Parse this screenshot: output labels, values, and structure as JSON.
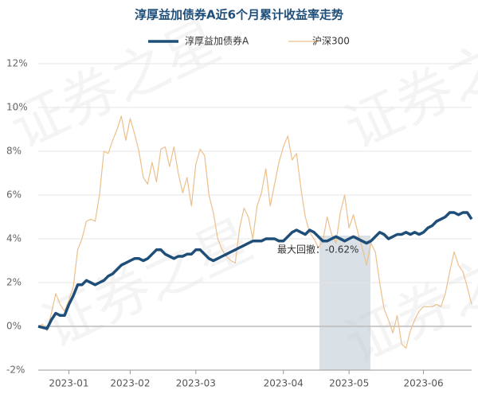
{
  "chart_data": {
    "type": "line",
    "title": "淳厚益加债券A近6个月累计收益率走势",
    "watermark": "证券之星",
    "annotation": "最大回撤：-0.62%",
    "categories": [
      null,
      null,
      null,
      null,
      null,
      null,
      null,
      "2023-01",
      null,
      null,
      null,
      null,
      null,
      null,
      null,
      null,
      null,
      null,
      null,
      null,
      null,
      "2023-02",
      null,
      null,
      null,
      null,
      null,
      null,
      null,
      null,
      null,
      null,
      null,
      null,
      null,
      null,
      "2023-03",
      null,
      null,
      null,
      null,
      null,
      null,
      null,
      null,
      null,
      null,
      null,
      null,
      null,
      null,
      null,
      null,
      null,
      null,
      null,
      "2023-04",
      null,
      null,
      null,
      null,
      null,
      null,
      null,
      null,
      null,
      null,
      null,
      null,
      null,
      null,
      "2023-05",
      null,
      null,
      null,
      null,
      null,
      null,
      null,
      null,
      null,
      null,
      null,
      null,
      null,
      null,
      null,
      null,
      "2023-06",
      null,
      null,
      null,
      null,
      null,
      null,
      null,
      null,
      null,
      null,
      null
    ],
    "series": [
      {
        "name": "淳厚益加债券A",
        "color": "#1f4e79",
        "width": 3.5,
        "values": [
          0,
          -0.05,
          -0.1,
          0.3,
          0.6,
          0.5,
          0.5,
          1.0,
          1.4,
          1.9,
          1.9,
          2.1,
          2.0,
          1.9,
          2.0,
          2.1,
          2.3,
          2.4,
          2.6,
          2.8,
          2.9,
          3.0,
          3.1,
          3.1,
          3.0,
          3.1,
          3.3,
          3.5,
          3.5,
          3.3,
          3.2,
          3.1,
          3.2,
          3.2,
          3.3,
          3.3,
          3.5,
          3.5,
          3.3,
          3.1,
          3.0,
          3.1,
          3.2,
          3.3,
          3.4,
          3.5,
          3.6,
          3.7,
          3.8,
          3.9,
          3.9,
          3.9,
          4.0,
          4.0,
          4.0,
          3.9,
          3.9,
          4.1,
          4.3,
          4.4,
          4.3,
          4.2,
          4.4,
          4.3,
          4.1,
          3.9,
          3.9,
          4.0,
          4.1,
          4.0,
          3.9,
          4.0,
          4.1,
          4.0,
          3.9,
          3.8,
          3.9,
          4.1,
          4.3,
          4.2,
          4.0,
          4.1,
          4.2,
          4.2,
          4.3,
          4.2,
          4.3,
          4.2,
          4.3,
          4.5,
          4.6,
          4.8,
          4.9,
          5.0,
          5.2,
          5.2,
          5.1,
          5.2,
          5.2,
          4.9
        ]
      },
      {
        "name": "沪深300",
        "color": "#ecc08c",
        "width": 1.2,
        "values": [
          0,
          0.1,
          -0.2,
          0.6,
          1.5,
          1.0,
          0.7,
          1.2,
          1.8,
          3.5,
          4.0,
          4.8,
          4.9,
          4.8,
          6.0,
          8.0,
          7.9,
          8.5,
          9.0,
          9.6,
          8.5,
          9.5,
          8.8,
          8.0,
          6.8,
          6.5,
          7.5,
          6.6,
          8.1,
          8.2,
          7.3,
          8.2,
          7.0,
          6.1,
          6.8,
          5.5,
          7.4,
          8.1,
          7.8,
          6.0,
          5.2,
          4.0,
          3.5,
          3.2,
          3.0,
          2.9,
          4.5,
          5.4,
          5.0,
          4.0,
          5.5,
          6.1,
          7.2,
          5.5,
          6.5,
          7.5,
          8.2,
          8.7,
          7.6,
          7.9,
          6.3,
          5.0,
          4.3,
          4.0,
          3.6,
          3.9,
          5.0,
          4.2,
          3.8,
          5.2,
          6.0,
          4.5,
          5.1,
          4.3,
          3.6,
          2.8,
          3.8,
          3.4,
          2.0,
          0.8,
          0.3,
          -0.3,
          0.5,
          -0.8,
          -1.0,
          -0.2,
          0.3,
          0.7,
          0.9,
          0.9,
          0.9,
          1.0,
          0.9,
          1.5,
          2.5,
          3.4,
          2.8,
          2.5,
          1.8,
          1.0
        ]
      }
    ],
    "ylim": [
      -2,
      12
    ],
    "yticks": [
      {
        "value": -2,
        "label": "-2%"
      },
      {
        "value": 0,
        "label": "0%"
      },
      {
        "value": 2,
        "label": "2%"
      },
      {
        "value": 4,
        "label": "4%"
      },
      {
        "value": 6,
        "label": "6%"
      },
      {
        "value": 8,
        "label": "8%"
      },
      {
        "value": 10,
        "label": "10%"
      },
      {
        "value": 12,
        "label": "12%"
      }
    ],
    "grid": true
  }
}
